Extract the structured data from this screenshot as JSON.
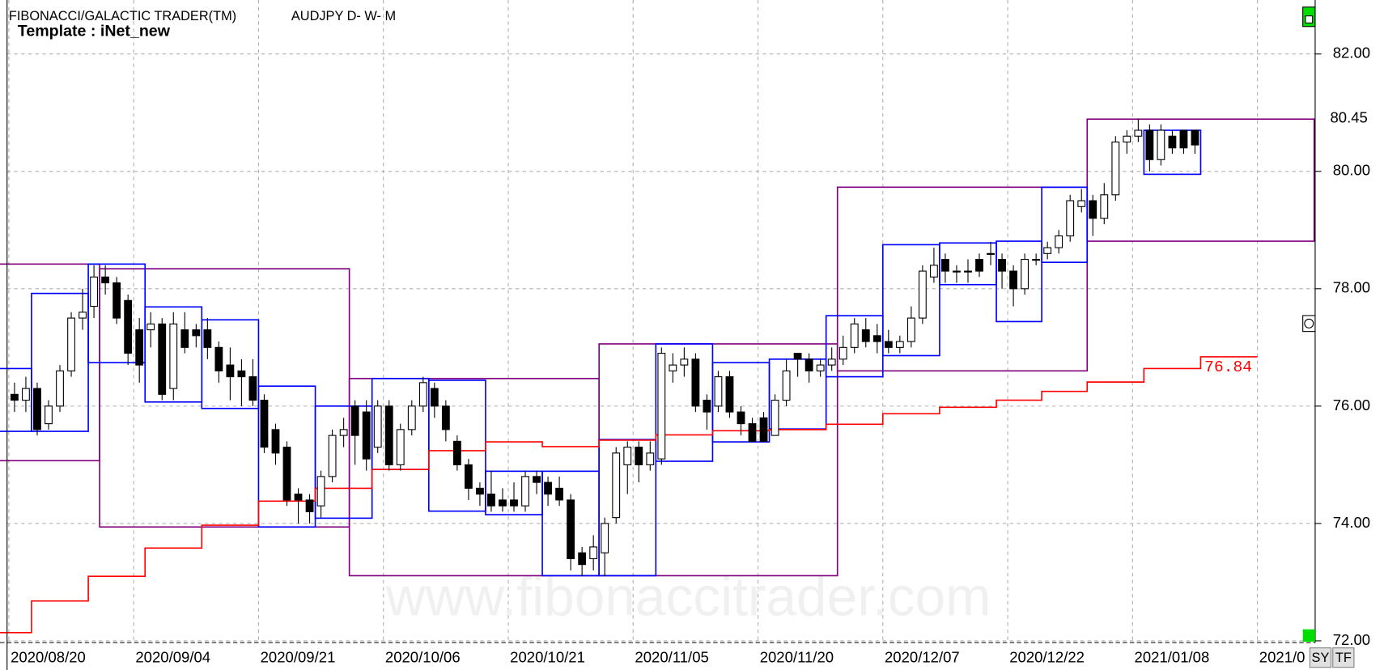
{
  "chart_data": {
    "type": "candlestick",
    "title": "FIBONACCI/GALACTIC TRADER(TM)",
    "subtitle": "AUDJPY D- W- M",
    "template": "Template : iNet_new",
    "watermark": "www.fibonaccitrader.com",
    "buttons": [
      "SY",
      "TF"
    ],
    "categories": [
      "2020/08/20",
      null,
      null,
      null,
      null,
      null,
      null,
      null,
      null,
      null,
      null,
      "2020/09/04",
      null,
      null,
      null,
      null,
      null,
      null,
      null,
      null,
      null,
      null,
      "2020/09/21",
      null,
      null,
      null,
      null,
      null,
      null,
      null,
      null,
      null,
      null,
      "2020/10/06",
      null,
      null,
      null,
      null,
      null,
      null,
      null,
      null,
      null,
      null,
      "2020/10/21",
      null,
      null,
      null,
      null,
      null,
      null,
      null,
      null,
      null,
      null,
      "2020/11/05",
      null,
      null,
      null,
      null,
      null,
      null,
      null,
      null,
      null,
      null,
      "2020/11/20",
      null,
      null,
      null,
      null,
      null,
      null,
      null,
      null,
      null,
      null,
      "2020/12/07",
      null,
      null,
      null,
      null,
      null,
      null,
      null,
      null,
      null,
      null,
      "2020/12/22",
      null,
      null,
      null,
      null,
      null,
      null,
      null,
      null,
      null,
      null,
      "2021/01/08",
      null,
      null,
      null,
      null,
      null,
      null,
      null,
      null,
      null,
      null,
      "2021/0"
    ],
    "open": [
      76.2,
      76.1,
      76.3,
      75.7,
      76.0,
      76.6,
      77.5,
      77.7,
      78.2,
      78.1,
      77.8,
      77.3,
      77.3,
      77.4,
      76.3,
      77.3,
      77.3,
      77.3,
      77.0,
      76.7,
      76.6,
      76.5,
      76.1,
      75.6,
      75.3,
      74.5,
      74.4,
      74.3,
      74.8,
      75.5,
      76.0,
      75.9,
      75.3,
      76.0,
      75.0,
      75.6,
      76.0,
      76.3,
      76.0,
      75.4,
      75.0,
      74.6,
      74.5,
      74.4,
      74.4,
      74.3,
      74.8,
      74.7,
      74.6,
      74.4,
      73.5,
      73.4,
      73.5,
      74.1,
      75.0,
      75.3,
      75.0,
      75.1,
      76.6,
      76.7,
      76.8,
      76.1,
      76.0,
      76.5,
      75.9,
      75.7,
      75.8,
      75.5,
      76.1,
      76.9,
      76.8,
      76.6,
      76.7,
      76.8,
      77.0,
      77.3,
      77.2,
      77.1,
      77.0,
      77.1,
      77.5,
      78.2,
      78.5,
      78.3,
      78.3,
      78.5,
      78.6,
      78.5,
      78.3,
      78.0,
      78.5,
      78.6,
      78.7,
      78.9,
      79.4,
      79.5,
      79.2,
      79.6,
      80.5,
      80.6,
      80.7,
      80.2,
      80.6,
      80.7,
      80.7,
      null,
      null,
      null,
      null,
      null,
      null
    ],
    "high": [
      76.4,
      76.5,
      76.4,
      76.1,
      76.7,
      77.6,
      78.0,
      78.4,
      78.4,
      78.2,
      77.9,
      77.5,
      77.6,
      77.5,
      77.6,
      77.6,
      77.4,
      77.5,
      77.1,
      77.0,
      76.8,
      76.8,
      76.2,
      75.7,
      75.4,
      74.6,
      74.5,
      74.9,
      75.6,
      75.8,
      76.1,
      76.1,
      76.1,
      76.1,
      75.7,
      76.1,
      76.5,
      76.4,
      76.1,
      75.5,
      75.1,
      74.7,
      74.9,
      74.6,
      74.7,
      74.9,
      74.9,
      74.8,
      74.8,
      74.5,
      73.6,
      73.8,
      74.1,
      75.3,
      75.4,
      75.4,
      75.4,
      77.0,
      76.9,
      77.0,
      76.9,
      76.2,
      76.6,
      76.6,
      76.0,
      75.8,
      75.9,
      76.2,
      76.8,
      76.9,
      76.9,
      76.8,
      77.0,
      77.2,
      77.5,
      77.5,
      77.4,
      77.3,
      77.2,
      77.7,
      78.4,
      78.7,
      78.6,
      78.4,
      78.5,
      78.6,
      78.8,
      78.6,
      78.4,
      78.6,
      78.6,
      78.8,
      79.0,
      79.6,
      79.7,
      79.6,
      79.8,
      80.6,
      80.7,
      80.9,
      80.8,
      80.8,
      80.7,
      80.7,
      80.7,
      null,
      null,
      null,
      null,
      null,
      null
    ],
    "low": [
      75.9,
      75.9,
      75.5,
      75.6,
      75.9,
      76.5,
      77.3,
      77.5,
      77.9,
      77.4,
      76.7,
      76.4,
      77.0,
      76.1,
      76.1,
      76.9,
      77.0,
      76.8,
      76.4,
      76.1,
      76.0,
      76.0,
      75.2,
      75.0,
      74.3,
      74.0,
      74.0,
      74.1,
      74.7,
      75.3,
      75.0,
      74.9,
      75.2,
      74.9,
      74.9,
      75.5,
      75.9,
      75.8,
      75.4,
      74.9,
      74.4,
      74.3,
      74.2,
      74.2,
      74.2,
      74.2,
      74.5,
      74.3,
      74.3,
      73.2,
      73.1,
      73.2,
      73.1,
      74.0,
      74.5,
      74.7,
      74.9,
      75.0,
      76.4,
      76.5,
      75.9,
      75.6,
      75.9,
      75.8,
      75.5,
      75.4,
      75.4,
      75.5,
      76.0,
      76.5,
      76.4,
      76.5,
      76.6,
      76.7,
      76.9,
      77.0,
      76.9,
      76.9,
      76.9,
      77.0,
      77.4,
      78.1,
      78.1,
      78.1,
      78.1,
      78.2,
      78.4,
      78.0,
      77.7,
      77.9,
      78.4,
      78.5,
      78.6,
      78.8,
      79.3,
      78.9,
      79.1,
      79.5,
      80.3,
      80.5,
      80.0,
      80.1,
      80.3,
      80.3,
      80.3,
      null,
      null,
      null,
      null,
      null,
      null
    ],
    "close": [
      76.1,
      76.3,
      75.6,
      76.0,
      76.6,
      77.5,
      77.6,
      78.2,
      78.1,
      77.5,
      76.9,
      76.7,
      77.4,
      76.2,
      77.4,
      77.0,
      77.2,
      77.0,
      76.6,
      76.5,
      76.5,
      76.1,
      75.3,
      75.2,
      74.4,
      74.4,
      74.2,
      74.8,
      75.5,
      75.6,
      75.5,
      75.1,
      76.0,
      75.0,
      75.6,
      76.0,
      76.4,
      76.0,
      75.6,
      75.0,
      74.6,
      74.5,
      74.3,
      74.3,
      74.3,
      74.8,
      74.7,
      74.5,
      74.4,
      73.4,
      73.3,
      73.6,
      74.0,
      75.2,
      75.3,
      75.0,
      75.2,
      76.9,
      76.7,
      76.8,
      76.0,
      75.9,
      76.5,
      75.9,
      75.7,
      75.4,
      75.4,
      76.1,
      76.6,
      76.8,
      76.6,
      76.7,
      76.8,
      77.0,
      77.4,
      77.1,
      77.1,
      77.0,
      77.1,
      77.5,
      78.3,
      78.4,
      78.3,
      78.3,
      78.3,
      78.3,
      78.6,
      78.3,
      78.0,
      78.5,
      78.5,
      78.7,
      78.9,
      79.5,
      79.5,
      79.2,
      79.6,
      80.5,
      80.6,
      80.7,
      80.2,
      80.7,
      80.4,
      80.4,
      80.45,
      null,
      null,
      null,
      null,
      null,
      null
    ],
    "up_color": "#ffffff",
    "down_color": "#000000",
    "wick_color": "#000000",
    "weekly": {
      "color": "#0000ff",
      "start": [
        -1,
        2,
        7,
        12,
        17,
        22,
        27,
        32,
        37,
        42,
        47,
        52,
        57,
        62,
        67,
        72,
        77,
        82,
        87,
        91,
        95,
        100,
        105
      ],
      "end": [
        2,
        7,
        12,
        17,
        22,
        27,
        32,
        37,
        42,
        47,
        52,
        57,
        62,
        67,
        72,
        77,
        82,
        87,
        91,
        95,
        100,
        105,
        110
      ],
      "high": [
        76.64,
        77.92,
        78.42,
        77.69,
        77.47,
        76.34,
        76.0,
        76.47,
        76.44,
        74.89,
        74.89,
        75.43,
        77.06,
        76.74,
        76.8,
        77.54,
        78.75,
        78.78,
        78.81,
        79.73,
        null,
        80.7,
        null
      ],
      "low": [
        75.57,
        75.57,
        76.74,
        76.07,
        75.96,
        73.94,
        74.09,
        74.92,
        74.21,
        74.15,
        73.11,
        73.11,
        75.06,
        75.39,
        75.61,
        76.5,
        76.86,
        78.07,
        77.44,
        78.45,
        null,
        79.95,
        null
      ],
      "trail": [
        72.14,
        72.68,
        73.1,
        73.58,
        73.97,
        74.38,
        74.6,
        74.92,
        75.24,
        75.39,
        75.31,
        75.42,
        75.51,
        75.58,
        75.6,
        75.69,
        75.87,
        75.98,
        76.1,
        76.25,
        76.41,
        76.64,
        76.84
      ],
      "trail_color": "#ff0000"
    },
    "monthly": {
      "color": "#800080",
      "start": [
        -1,
        8,
        30,
        52,
        73,
        95
      ],
      "end": [
        8,
        30,
        52,
        73,
        95,
        115
      ],
      "high": [
        78.42,
        78.34,
        76.47,
        77.06,
        79.73,
        80.89
      ],
      "low": [
        75.07,
        73.94,
        73.11,
        73.11,
        76.6,
        78.81
      ]
    },
    "ylim": [
      72,
      82.92
    ],
    "yticks": [
      {
        "value": 72,
        "label": "72.00"
      },
      {
        "value": 74,
        "label": "74.00"
      },
      {
        "value": 76,
        "label": "76.00"
      },
      {
        "value": 78,
        "label": "78.00"
      },
      {
        "value": 80,
        "label": "80.00"
      },
      {
        "value": 82,
        "label": "82.00"
      }
    ],
    "grid": true
  }
}
